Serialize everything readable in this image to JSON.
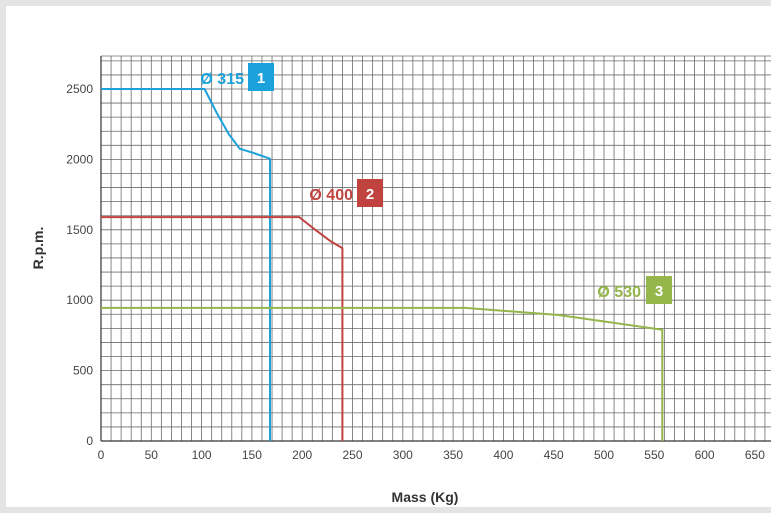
{
  "chart_data": {
    "type": "line",
    "title": "",
    "xlabel": "Mass (Kg)",
    "ylabel": "R.p.m.",
    "xlim": [
      0,
      650
    ],
    "ylim": [
      0,
      2500
    ],
    "x_ticks": [
      "0",
      "50",
      "100",
      "150",
      "200",
      "250",
      "300",
      "350",
      "400",
      "450",
      "500",
      "550",
      "600",
      "650"
    ],
    "y_ticks": [
      "0",
      "500",
      "1000",
      "1500",
      "2000",
      "2500"
    ],
    "grid": true,
    "series": [
      {
        "name": "Ø 315",
        "badge": "1",
        "color": "#1ba1db",
        "points": [
          [
            0,
            2500
          ],
          [
            103,
            2500
          ],
          [
            115,
            2330
          ],
          [
            127,
            2180
          ],
          [
            138,
            2075
          ],
          [
            152,
            2045
          ],
          [
            168,
            2005
          ],
          [
            168,
            0
          ]
        ]
      },
      {
        "name": "Ø 400",
        "badge": "2",
        "color": "#c0433f",
        "points": [
          [
            0,
            1590
          ],
          [
            197,
            1590
          ],
          [
            213,
            1500
          ],
          [
            228,
            1420
          ],
          [
            240,
            1370
          ],
          [
            240,
            0
          ]
        ]
      },
      {
        "name": "Ø 530",
        "badge": "3",
        "color": "#94b64a",
        "points": [
          [
            0,
            945
          ],
          [
            362,
            945
          ],
          [
            455,
            895
          ],
          [
            558,
            790
          ],
          [
            558,
            0
          ]
        ]
      }
    ]
  }
}
